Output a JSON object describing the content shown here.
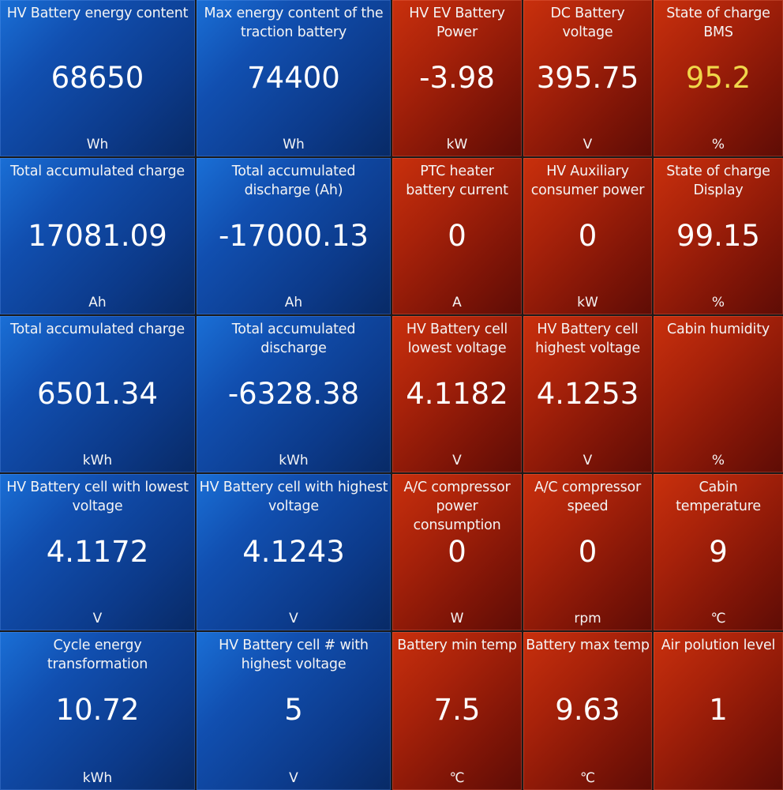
{
  "colors": {
    "blue_tile": "#114fb0",
    "red_tile": "#a8220a",
    "highlight_value": "#f0d74a"
  },
  "tiles": [
    {
      "label": "HV Battery energy content",
      "value": "68650",
      "unit": "Wh"
    },
    {
      "label": "Max energy content of the traction battery",
      "value": "74400",
      "unit": "Wh"
    },
    {
      "label": "HV EV Battery Power",
      "value": "-3.98",
      "unit": "kW"
    },
    {
      "label": "DC Battery voltage",
      "value": "395.75",
      "unit": "V"
    },
    {
      "label": "State of charge BMS",
      "value": "95.2",
      "unit": "%"
    },
    {
      "label": "Total accumulated charge",
      "value": "17081.09",
      "unit": "Ah"
    },
    {
      "label": "Total accumulated discharge (Ah)",
      "value": "-17000.13",
      "unit": "Ah"
    },
    {
      "label": "PTC heater battery current",
      "value": "0",
      "unit": "A"
    },
    {
      "label": "HV Auxiliary consumer power",
      "value": "0",
      "unit": "kW"
    },
    {
      "label": "State of charge Display",
      "value": "99.15",
      "unit": "%"
    },
    {
      "label": "Total accumulated charge",
      "value": "6501.34",
      "unit": "kWh"
    },
    {
      "label": "Total accumulated discharge",
      "value": "-6328.38",
      "unit": "kWh"
    },
    {
      "label": "HV Battery cell lowest voltage",
      "value": "4.1182",
      "unit": "V"
    },
    {
      "label": "HV Battery cell highest voltage",
      "value": "4.1253",
      "unit": "V"
    },
    {
      "label": "Cabin humidity",
      "value": "",
      "unit": "%"
    },
    {
      "label": "HV Battery cell with lowest voltage",
      "value": "4.1172",
      "unit": "V"
    },
    {
      "label": "HV Battery cell with highest voltage",
      "value": "4.1243",
      "unit": "V"
    },
    {
      "label": "A/C compressor power consumption",
      "value": "0",
      "unit": "W"
    },
    {
      "label": "A/C compressor speed",
      "value": "0",
      "unit": "rpm"
    },
    {
      "label": "Cabin temperature",
      "value": "9",
      "unit": "℃"
    },
    {
      "label": "Cycle energy transformation",
      "value": "10.72",
      "unit": "kWh"
    },
    {
      "label": "HV Battery cell # with highest voltage",
      "value": "5",
      "unit": "V"
    },
    {
      "label": "Battery min temp",
      "value": "7.5",
      "unit": "℃"
    },
    {
      "label": "Battery max temp",
      "value": "9.63",
      "unit": "℃"
    },
    {
      "label": "Air polution level",
      "value": "1",
      "unit": ""
    }
  ]
}
